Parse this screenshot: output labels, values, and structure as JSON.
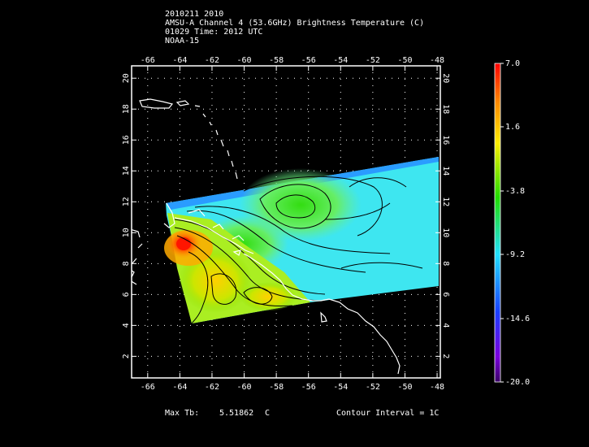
{
  "header": {
    "line1": "2010211 2010",
    "line2": "AMSU-A Channel 4 (53.6GHz) Brightness Temperature (C)",
    "line3": "01029 Time: 2012 UTC",
    "line4": "NOAA-15"
  },
  "axes": {
    "lon_ticks": [
      "-66",
      "-64",
      "-62",
      "-60",
      "-58",
      "-56",
      "-54",
      "-52",
      "-50",
      "-48"
    ],
    "lat_ticks": [
      "2",
      "4",
      "6",
      "8",
      "10",
      "12",
      "14",
      "16",
      "18",
      "20"
    ]
  },
  "colorbar": {
    "labels": [
      "7.0",
      "1.6",
      "-3.8",
      "-9.2",
      "-14.6",
      "-20.0"
    ],
    "colors": [
      "#ff0000",
      "#ff8800",
      "#ffee00",
      "#22dd00",
      "#22e0ff",
      "#1a40ff",
      "#7a00dd",
      "#3a0066"
    ]
  },
  "footer": {
    "max_label": "Max Tb:",
    "max_value": "5.51862",
    "max_unit": "C",
    "contour": "Contour Interval = 1C"
  }
}
